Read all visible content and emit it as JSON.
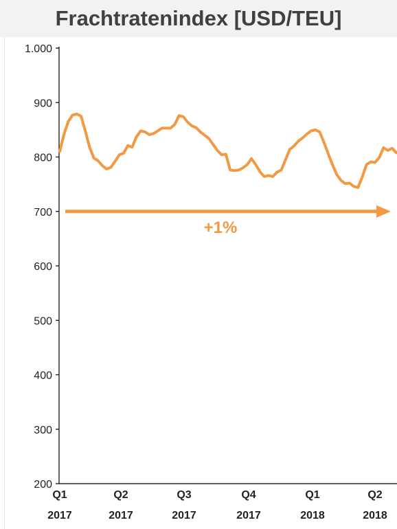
{
  "chart_data": {
    "type": "line",
    "title": "Frachtratenindex [USD/TEU]",
    "xlabel": "",
    "ylabel": "",
    "ylim": [
      200,
      1000
    ],
    "yticks": [
      1000,
      900,
      800,
      700,
      600,
      500,
      400,
      300,
      200
    ],
    "ytick_labels": [
      "1.000",
      "900",
      "800",
      "700",
      "600",
      "500",
      "400",
      "300",
      "200"
    ],
    "xticks": [
      {
        "line1": "Q1",
        "line2": "2017"
      },
      {
        "line1": "Q2",
        "line2": "2017"
      },
      {
        "line1": "Q3",
        "line2": "2017"
      },
      {
        "line1": "Q4",
        "line2": "2017"
      },
      {
        "line1": "Q1",
        "line2": "2018"
      },
      {
        "line1": "Q2",
        "line2": "2018"
      }
    ],
    "grid": false,
    "series_color": "#f29a43",
    "series": [
      {
        "values": [
          810,
          842,
          865,
          877,
          879,
          875,
          848,
          818,
          798,
          793,
          784,
          778,
          781,
          792,
          804,
          807,
          821,
          818,
          837,
          848,
          846,
          841,
          843,
          848,
          853,
          853,
          853,
          860,
          876,
          874,
          864,
          857,
          854,
          846,
          840,
          834,
          823,
          812,
          804,
          805,
          776,
          775,
          776,
          780,
          786,
          797,
          786,
          773,
          764,
          766,
          764,
          772,
          776,
          795,
          814,
          820,
          829,
          835,
          842,
          848,
          850,
          846,
          827,
          806,
          786,
          768,
          757,
          751,
          752,
          746,
          744,
          763,
          786,
          791,
          790,
          799,
          817,
          812,
          816,
          808
        ]
      }
    ],
    "annotation": {
      "label": "+1%",
      "arrow_value": 700
    }
  }
}
